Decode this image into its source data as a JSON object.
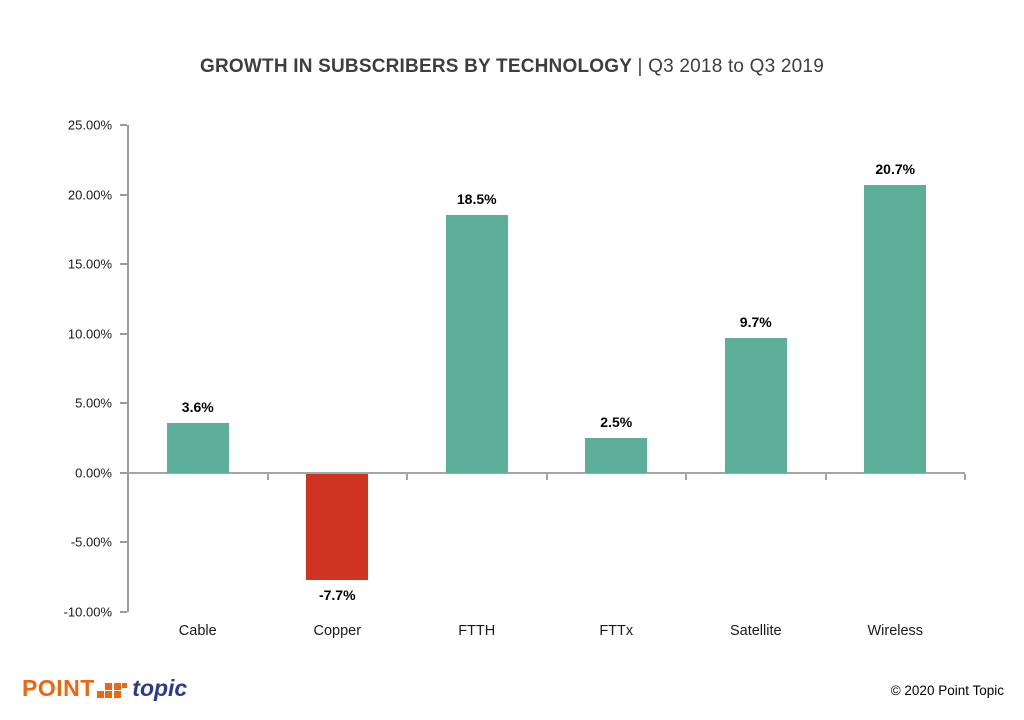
{
  "title": {
    "main": "GROWTH IN SUBSCRIBERS BY TECHNOLOGY",
    "sub": " | Q3 2018 to Q3 2019"
  },
  "chart_data": {
    "type": "bar",
    "title": "GROWTH IN SUBSCRIBERS BY TECHNOLOGY | Q3 2018 to Q3 2019",
    "categories": [
      "Cable",
      "Copper",
      "FTTH",
      "FTTx",
      "Satellite",
      "Wireless"
    ],
    "values": [
      3.6,
      -7.7,
      18.5,
      2.5,
      9.7,
      20.7
    ],
    "value_labels": [
      "3.6%",
      "-7.7%",
      "18.5%",
      "2.5%",
      "9.7%",
      "20.7%"
    ],
    "xlabel": "",
    "ylabel": "",
    "ylim": [
      -10,
      25
    ],
    "y_ticks": [
      "25.00%",
      "20.00%",
      "15.00%",
      "10.00%",
      "5.00%",
      "0.00%",
      "-5.00%",
      "-10.00%"
    ],
    "grid": false,
    "legend": "none",
    "colors": {
      "positive_bar": "#5cae99",
      "negative_bar": "#cf3422",
      "axis": "#9b9b9b",
      "zero_line": "#a6a6a6"
    }
  },
  "footer": {
    "logo": {
      "point": "POINT",
      "topic": "topic"
    },
    "copyright": "© 2020 Point Topic"
  }
}
